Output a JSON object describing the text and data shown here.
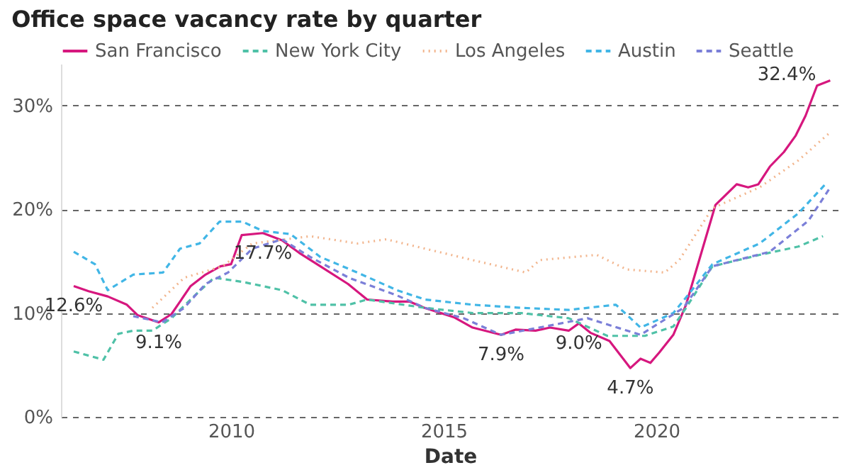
{
  "chart_data": {
    "type": "line",
    "title": "Office space vacancy rate by quarter",
    "xlabel": "Date",
    "legend": "top",
    "grid": "y",
    "marker": "none",
    "xlim": [
      2006.0,
      2024.3
    ],
    "xticks": [
      2010,
      2015,
      2020
    ],
    "ylim": [
      0,
      34
    ],
    "yticks": [
      {
        "value": 0,
        "label": "0%"
      },
      {
        "value": 10,
        "label": "10%"
      },
      {
        "value": 20,
        "label": "20%"
      },
      {
        "value": 30,
        "label": "30%"
      }
    ],
    "series": [
      {
        "name": "San Francisco",
        "color": "#d6177e",
        "line_style": "solid",
        "x": [
          2006.3,
          2006.65,
          2007.1,
          2007.55,
          2007.8,
          2008.3,
          2008.6,
          2009.05,
          2009.4,
          2009.75,
          2010.0,
          2010.25,
          2010.75,
          2011.2,
          2011.6,
          2012.1,
          2012.75,
          2013.2,
          2013.8,
          2014.2,
          2014.55,
          2015.24,
          2015.68,
          2016.35,
          2016.69,
          2017.16,
          2017.5,
          2017.94,
          2018.18,
          2018.45,
          2018.9,
          2019.39,
          2019.63,
          2019.86,
          2020.07,
          2020.4,
          2020.7,
          2021.39,
          2021.89,
          2022.16,
          2022.4,
          2022.67,
          2023.0,
          2023.28,
          2023.51,
          2023.78,
          2024.09
        ],
        "values": [
          12.6,
          12.1,
          11.6,
          10.8,
          9.8,
          9.1,
          9.9,
          12.6,
          13.7,
          14.5,
          14.7,
          17.5,
          17.7,
          17.0,
          15.8,
          14.5,
          12.8,
          11.3,
          11.1,
          11.1,
          10.5,
          9.6,
          8.6,
          7.9,
          8.4,
          8.3,
          8.6,
          8.3,
          9.0,
          8.1,
          7.3,
          4.7,
          5.6,
          5.2,
          6.2,
          7.9,
          10.8,
          20.4,
          22.4,
          22.1,
          22.4,
          24.1,
          25.5,
          27.1,
          29.0,
          31.9,
          32.4
        ]
      },
      {
        "name": "New York City",
        "color": "#4fc1a7",
        "line_style": "dashed",
        "x": [
          2006.3,
          2007.0,
          2007.35,
          2007.7,
          2008.15,
          2008.6,
          2009.15,
          2009.6,
          2010.27,
          2011.2,
          2011.86,
          2012.77,
          2013.2,
          2014.56,
          2015.68,
          2016.82,
          2017.94,
          2018.85,
          2019.73,
          2020.4,
          2020.7,
          2021.32,
          2022.43,
          2023.34,
          2023.92
        ],
        "values": [
          6.3,
          5.5,
          8.0,
          8.3,
          8.3,
          9.5,
          11.7,
          13.4,
          13.0,
          12.2,
          10.8,
          10.8,
          11.3,
          10.5,
          10.0,
          10.0,
          9.5,
          7.8,
          7.8,
          8.7,
          10.5,
          14.5,
          15.6,
          16.4,
          17.4
        ]
      },
      {
        "name": "Los Angeles",
        "color": "#f2b58d",
        "line_style": "dotted",
        "x": [
          2008.15,
          2008.9,
          2009.8,
          2010.5,
          2011.86,
          2012.97,
          2013.65,
          2014.56,
          2015.68,
          2016.93,
          2017.26,
          2018.6,
          2019.3,
          2020.2,
          2020.54,
          2021.32,
          2022.43,
          2023.34,
          2024.09
        ],
        "values": [
          10.5,
          13.4,
          14.5,
          16.7,
          17.4,
          16.7,
          17.1,
          16.2,
          15.1,
          13.9,
          15.1,
          15.6,
          14.2,
          13.9,
          15.1,
          20.1,
          22.1,
          24.7,
          27.4
        ]
      },
      {
        "name": "Austin",
        "color": "#41b6e6",
        "line_style": "dashed",
        "x": [
          2006.3,
          2006.8,
          2007.1,
          2007.7,
          2008.4,
          2008.8,
          2009.26,
          2009.73,
          2010.27,
          2010.75,
          2011.4,
          2012.1,
          2012.97,
          2013.9,
          2014.56,
          2015.68,
          2016.82,
          2017.94,
          2019.05,
          2019.63,
          2020.4,
          2020.74,
          2021.32,
          2022.43,
          2023.34,
          2024.02
        ],
        "values": [
          15.9,
          14.7,
          12.2,
          13.7,
          13.9,
          16.2,
          16.7,
          18.8,
          18.8,
          17.9,
          17.6,
          15.4,
          13.9,
          12.2,
          11.3,
          10.8,
          10.5,
          10.3,
          10.8,
          8.6,
          10.0,
          11.7,
          14.7,
          16.7,
          19.6,
          22.6
        ]
      },
      {
        "name": "Seattle",
        "color": "#7b7fd8",
        "line_style": "dashed",
        "x": [
          2007.7,
          2008.38,
          2008.9,
          2009.4,
          2009.93,
          2010.5,
          2011.2,
          2011.86,
          2012.77,
          2013.9,
          2014.56,
          2015.47,
          2016.35,
          2017.5,
          2018.38,
          2019.63,
          2020.64,
          2021.32,
          2022.67,
          2023.58,
          2024.09
        ],
        "values": [
          9.7,
          9.1,
          10.5,
          12.8,
          13.9,
          16.2,
          17.1,
          15.4,
          13.4,
          11.7,
          10.5,
          9.5,
          7.9,
          8.8,
          9.5,
          7.9,
          10.5,
          14.5,
          15.9,
          18.9,
          22.1
        ]
      }
    ],
    "annotations": [
      {
        "text": "12.6%",
        "x": 2006.3,
        "y": 12.6
      },
      {
        "text": "9.1%",
        "x": 2008.3,
        "y": 9.1
      },
      {
        "text": "17.7%",
        "x": 2010.75,
        "y": 17.7
      },
      {
        "text": "7.9%",
        "x": 2016.35,
        "y": 7.9
      },
      {
        "text": "9.0%",
        "x": 2018.18,
        "y": 9.0
      },
      {
        "text": "4.7%",
        "x": 2019.39,
        "y": 4.7
      },
      {
        "text": "32.4%",
        "x": 2024.09,
        "y": 32.4
      }
    ]
  }
}
